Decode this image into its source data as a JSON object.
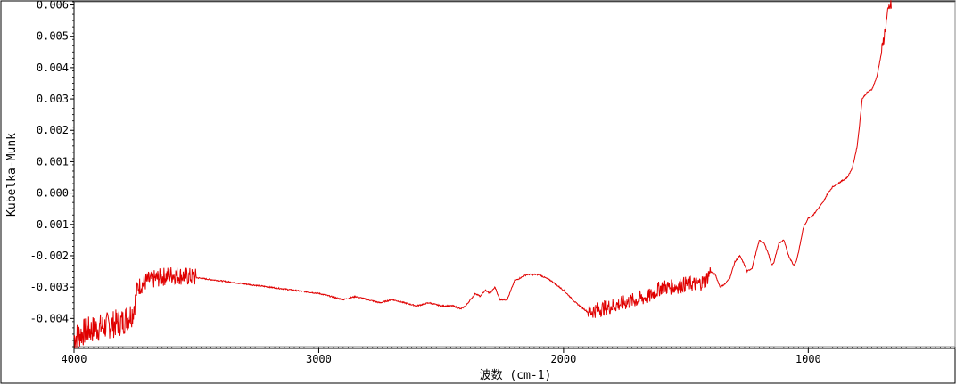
{
  "chart_data": {
    "type": "line",
    "title": "",
    "xlabel": "波数 (cm-1)",
    "ylabel": "Kubelka-Munk",
    "xlim": [
      4000,
      400
    ],
    "ylim": [
      -0.0049,
      0.0061
    ],
    "x_reversed": true,
    "grid": false,
    "line_color": "#e00000",
    "x_ticks": [
      {
        "value": 4000,
        "label": "4000"
      },
      {
        "value": 3000,
        "label": "3000"
      },
      {
        "value": 2000,
        "label": "2000"
      },
      {
        "value": 1000,
        "label": "1000"
      }
    ],
    "y_ticks": [
      {
        "value": 0.006,
        "label": "0.006"
      },
      {
        "value": 0.005,
        "label": "0.005"
      },
      {
        "value": 0.004,
        "label": "0.004"
      },
      {
        "value": 0.003,
        "label": "0.003"
      },
      {
        "value": 0.002,
        "label": "0.002"
      },
      {
        "value": 0.001,
        "label": "0.001"
      },
      {
        "value": 0.0,
        "label": "0.000"
      },
      {
        "value": -0.001,
        "label": "-0.001"
      },
      {
        "value": -0.002,
        "label": "-0.002"
      },
      {
        "value": -0.003,
        "label": "-0.003"
      },
      {
        "value": -0.004,
        "label": "-0.004"
      }
    ],
    "series": [
      {
        "x": [
          4000,
          3950,
          3900,
          3850,
          3800,
          3760,
          3740,
          3700,
          3650,
          3600,
          3550,
          3500,
          3400,
          3300,
          3200,
          3100,
          3000,
          2950,
          2900,
          2850,
          2800,
          2750,
          2700,
          2650,
          2600,
          2550,
          2500,
          2450,
          2420,
          2400,
          2380,
          2360,
          2340,
          2320,
          2300,
          2280,
          2260,
          2230,
          2200,
          2150,
          2100,
          2050,
          2000,
          1950,
          1900,
          1850,
          1800,
          1750,
          1700,
          1650,
          1600,
          1550,
          1500,
          1450,
          1420,
          1400,
          1380,
          1360,
          1340,
          1320,
          1300,
          1280,
          1260,
          1250,
          1230,
          1200,
          1180,
          1160,
          1150,
          1140,
          1120,
          1100,
          1080,
          1060,
          1050,
          1040,
          1020,
          1000,
          980,
          960,
          940,
          920,
          900,
          880,
          860,
          840,
          820,
          800,
          790,
          780,
          760,
          740,
          720,
          700,
          690,
          680,
          670,
          660
        ],
        "y": [
          -0.0046,
          -0.0044,
          -0.0043,
          -0.0042,
          -0.0041,
          -0.0038,
          -0.003,
          -0.0028,
          -0.0027,
          -0.0026,
          -0.00265,
          -0.0027,
          -0.0028,
          -0.0029,
          -0.003,
          -0.0031,
          -0.0032,
          -0.0033,
          -0.0034,
          -0.0033,
          -0.0034,
          -0.0035,
          -0.0034,
          -0.0035,
          -0.0036,
          -0.0035,
          -0.0036,
          -0.0036,
          -0.0037,
          -0.0036,
          -0.0034,
          -0.0032,
          -0.0033,
          -0.0031,
          -0.0032,
          -0.003,
          -0.0034,
          -0.0034,
          -0.0028,
          -0.0026,
          -0.0026,
          -0.0028,
          -0.0031,
          -0.0035,
          -0.0038,
          -0.0037,
          -0.0036,
          -0.0035,
          -0.0034,
          -0.0033,
          -0.003,
          -0.003,
          -0.0029,
          -0.0029,
          -0.0028,
          -0.0025,
          -0.0026,
          -0.003,
          -0.0029,
          -0.0027,
          -0.0022,
          -0.002,
          -0.0023,
          -0.0025,
          -0.0024,
          -0.0015,
          -0.0016,
          -0.002,
          -0.0023,
          -0.0022,
          -0.0016,
          -0.0015,
          -0.002,
          -0.0023,
          -0.0022,
          -0.0019,
          -0.0011,
          -0.0008,
          -0.0007,
          -0.0005,
          -0.0003,
          0.0,
          0.0002,
          0.0003,
          0.0004,
          0.0005,
          0.0008,
          0.0015,
          0.0022,
          0.003,
          0.0032,
          0.0033,
          0.0037,
          0.0045,
          0.005,
          0.0055,
          0.0059,
          0.006
        ]
      }
    ]
  }
}
